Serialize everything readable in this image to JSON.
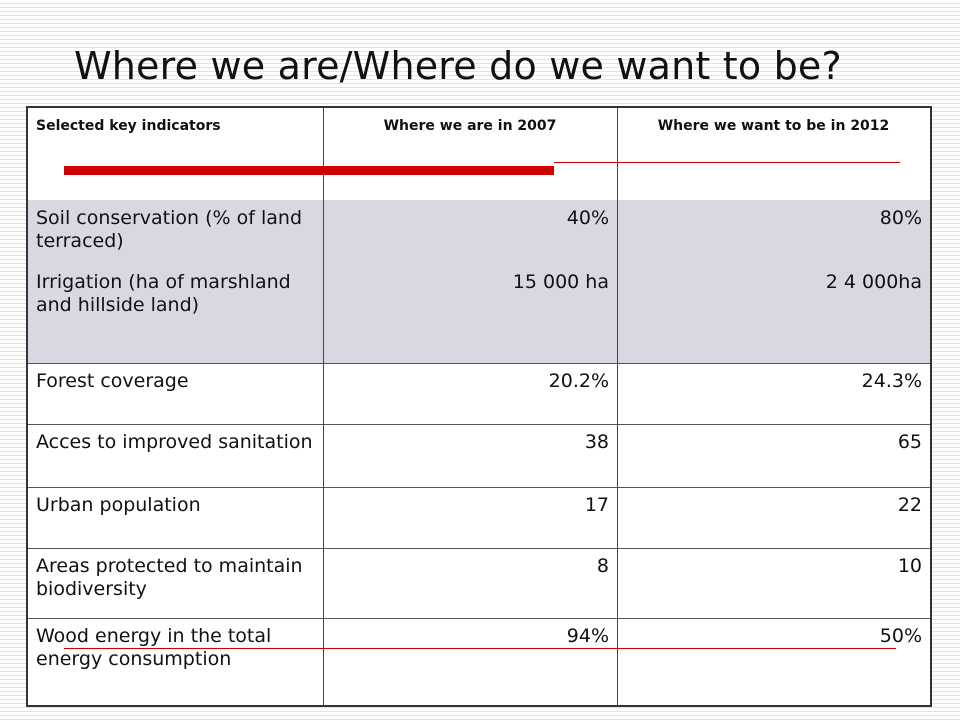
{
  "slide": {
    "title": "Where we are/Where do we want to be?"
  },
  "table": {
    "headers": [
      "Selected key indicators",
      "Where we are in  2007",
      "Where we want to be in 2012"
    ],
    "rows": [
      {
        "indicator": "Soil conservation (% of land terraced)",
        "y2007": "40%",
        "y2012": "80%"
      },
      {
        "indicator": "Irrigation (ha of marshland and hillside land)",
        "y2007": "15 000  ha",
        "y2012": "2 4 000ha"
      },
      {
        "indicator": "Forest coverage",
        "y2007": "20.2%",
        "y2012": "24.3%"
      },
      {
        "indicator": "Acces to improved sanitation",
        "y2007": "38",
        "y2012": "65"
      },
      {
        "indicator": "Urban population",
        "y2007": "17",
        "y2012": "22"
      },
      {
        "indicator": "Areas protected to maintain biodiversity",
        "y2007": "8",
        "y2012": "10"
      },
      {
        "indicator": "Wood energy in the total energy consumption",
        "y2007": "94%",
        "y2012": "50%"
      }
    ]
  },
  "colors": {
    "accent_red": "#cc0000",
    "row_shade": "#d8d8e3"
  }
}
